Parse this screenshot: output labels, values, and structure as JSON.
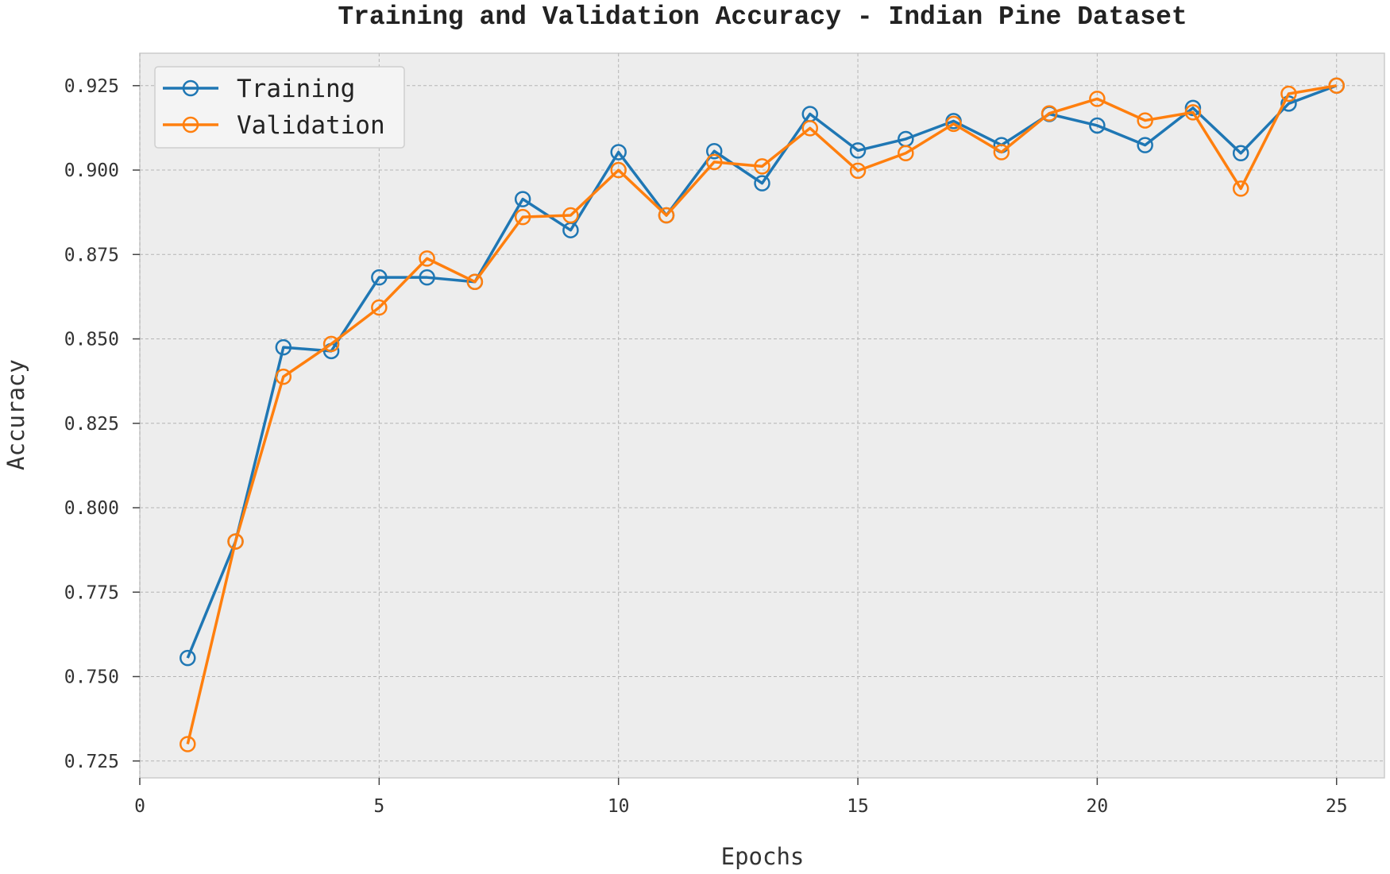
{
  "chart_data": {
    "type": "line",
    "title": "Training and Validation Accuracy - Indian Pine Dataset",
    "xlabel": "Epochs",
    "ylabel": "Accuracy",
    "xlim": [
      0,
      26
    ],
    "ylim": [
      0.72,
      0.9346
    ],
    "xticks": [
      0,
      5,
      10,
      15,
      20,
      25
    ],
    "yticks": [
      0.725,
      0.75,
      0.775,
      0.8,
      0.825,
      0.85,
      0.875,
      0.9,
      0.925
    ],
    "ytick_labels": [
      "0.725",
      "0.750",
      "0.775",
      "0.800",
      "0.825",
      "0.850",
      "0.875",
      "0.900",
      "0.925"
    ],
    "grid": true,
    "legend_position": "top-left",
    "x": [
      1,
      2,
      3,
      4,
      5,
      6,
      7,
      8,
      9,
      10,
      11,
      12,
      13,
      14,
      15,
      16,
      17,
      18,
      19,
      20,
      21,
      22,
      23,
      24,
      25
    ],
    "series": [
      {
        "name": "Training",
        "color": "#1f77b4",
        "marker": "open-circle",
        "values": [
          0.7555,
          0.79,
          0.8475,
          0.8464,
          0.8682,
          0.8682,
          0.8669,
          0.8914,
          0.8822,
          0.9053,
          0.8866,
          0.9056,
          0.8961,
          0.9166,
          0.9058,
          0.9092,
          0.9145,
          0.9074,
          0.9166,
          0.9132,
          0.9074,
          0.9184,
          0.905,
          0.9197,
          0.925
        ]
      },
      {
        "name": "Validation",
        "color": "#ff7f0e",
        "marker": "open-circle",
        "values": [
          0.73,
          0.79,
          0.8388,
          0.8485,
          0.8593,
          0.8738,
          0.8669,
          0.8861,
          0.8866,
          0.9,
          0.8866,
          0.9024,
          0.9011,
          0.9124,
          0.8998,
          0.905,
          0.9137,
          0.9053,
          0.9168,
          0.9211,
          0.9147,
          0.9171,
          0.8945,
          0.9226,
          0.925
        ]
      }
    ],
    "plot_background": "#ededed"
  }
}
